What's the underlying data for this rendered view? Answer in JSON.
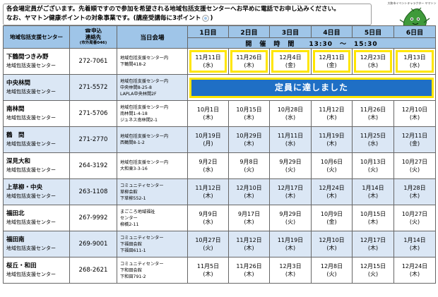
{
  "notice": {
    "line1": "各会場定員がございます。先着順ですので参加を希望される地域包括支援センターへお早めに電話でお申し込みください。",
    "line2": "なお、ヤマトン健康ポイントの対象事業です。(講座受講毎に3ポイント"
  },
  "mascot": {
    "caption": "大和市イベントキャラクター ヤマトン"
  },
  "header": {
    "center": "地域包括支援センター",
    "contact_line1": "☎申込",
    "contact_line2": "連絡先",
    "contact_small": "(市外局番046)",
    "venue": "当日会場",
    "days": [
      "1日目",
      "2日目",
      "3日目",
      "4日目",
      "5日目",
      "6日目"
    ],
    "time_label": "開　催　時　間　　13:30　～　15:30"
  },
  "rows": [
    {
      "name": "下鶴間つきみ野",
      "sub": "地域包括支援センター",
      "tel": "272-7061",
      "venue": [
        "地域包括支援センター内",
        "下鶴間418-2"
      ],
      "dates": [
        [
          "11月11日",
          "(水)"
        ],
        [
          "11月26日",
          "(木)"
        ],
        [
          "12月4日",
          "(金)"
        ],
        [
          "12月11日",
          "(金)"
        ],
        [
          "12月23日",
          "(水)"
        ],
        [
          "1月13日",
          "(水)"
        ]
      ]
    },
    {
      "name": "中央林間",
      "sub": "地域包括支援センター",
      "tel": "271-5572",
      "venue": [
        "地域包括支援センター内",
        "中央林間8-25-8",
        "LAPLA中央林間2F"
      ],
      "full_message": "定員に達しました"
    },
    {
      "name": "南林間",
      "sub": "地域包括支援センター",
      "tel": "271-5706",
      "venue": [
        "地域包括支援センター内",
        "南林間1-4-18",
        "ジュネス南林間2-1"
      ],
      "dates": [
        [
          "10月1日",
          "(木)"
        ],
        [
          "10月15日",
          "(木)"
        ],
        [
          "10月28日",
          "(水)"
        ],
        [
          "11月12日",
          "(木)"
        ],
        [
          "11月26日",
          "(木)"
        ],
        [
          "12月10日",
          "(木)"
        ]
      ]
    },
    {
      "name": "鶴　間",
      "sub": "地域包括支援センター",
      "tel": "271-2770",
      "venue": [
        "地域包括支援センター内",
        "西鶴間8-1-2"
      ],
      "dates": [
        [
          "10月19日",
          "(月)"
        ],
        [
          "10月29日",
          "(木)"
        ],
        [
          "11月11日",
          "(水)"
        ],
        [
          "11月19日",
          "(木)"
        ],
        [
          "11月25日",
          "(水)"
        ],
        [
          "12月11日",
          "(金)"
        ]
      ]
    },
    {
      "name": "深見大和",
      "sub": "地域包括支援センター",
      "tel": "264-3192",
      "venue": [
        "地域包括支援センター内",
        "大和東3-3-16"
      ],
      "dates": [
        [
          "9月2日",
          "(水)"
        ],
        [
          "9月8日",
          "(火)"
        ],
        [
          "9月29日",
          "(火)"
        ],
        [
          "10月6日",
          "(火)"
        ],
        [
          "10月13日",
          "(火)"
        ],
        [
          "10月27日",
          "(火)"
        ]
      ]
    },
    {
      "name": "上草柳・中央",
      "sub": "地域包括支援センター",
      "tel": "263-1108",
      "venue": [
        "コミュニティセンター",
        "草柳会館",
        "下草柳552-1"
      ],
      "dates": [
        [
          "11月12日",
          "(木)"
        ],
        [
          "12月10日",
          "(木)"
        ],
        [
          "12月17日",
          "(木)"
        ],
        [
          "12月24日",
          "(木)"
        ],
        [
          "1月14日",
          "(木)"
        ],
        [
          "1月28日",
          "(木)"
        ]
      ]
    },
    {
      "name": "福田北",
      "sub": "地域包括支援センター",
      "tel": "267-9992",
      "venue": [
        "まごころ地域福祉",
        "センター",
        "柳橋2-11"
      ],
      "dates": [
        [
          "9月9日",
          "(水)"
        ],
        [
          "9月17日",
          "(木)"
        ],
        [
          "9月29日",
          "(火)"
        ],
        [
          "10月9日",
          "(金)"
        ],
        [
          "10月15日",
          "(木)"
        ],
        [
          "10月27日",
          "(火)"
        ]
      ]
    },
    {
      "name": "福田南",
      "sub": "地域包括支援センター",
      "tel": "269-9001",
      "venue": [
        "コミュニティセンター",
        "下福田会館",
        "下福田611-1"
      ],
      "dates": [
        [
          "10月27日",
          "(火)"
        ],
        [
          "11月12日",
          "(木)"
        ],
        [
          "11月19日",
          "(木)"
        ],
        [
          "12月10日",
          "(木)"
        ],
        [
          "12月17日",
          "(木)"
        ],
        [
          "1月14日",
          "(木)"
        ]
      ]
    },
    {
      "name": "桜丘・和田",
      "sub": "地域包括支援センター",
      "tel": "268-2621",
      "venue": [
        "コミュニティセンター",
        "下和田会館",
        "下和田791-2"
      ],
      "dates": [
        [
          "11月5日",
          "(木)"
        ],
        [
          "11月26日",
          "(木)"
        ],
        [
          "12月3日",
          "(木)"
        ],
        [
          "12月8日",
          "(火)"
        ],
        [
          "12月15日",
          "(火)"
        ],
        [
          "12月24日",
          "(木)"
        ]
      ]
    }
  ],
  "colors": {
    "header": "#9fc5e8",
    "shade": "#dbe7f5",
    "highlight": "#ffe600",
    "full_banner": "#1f6fc5"
  }
}
